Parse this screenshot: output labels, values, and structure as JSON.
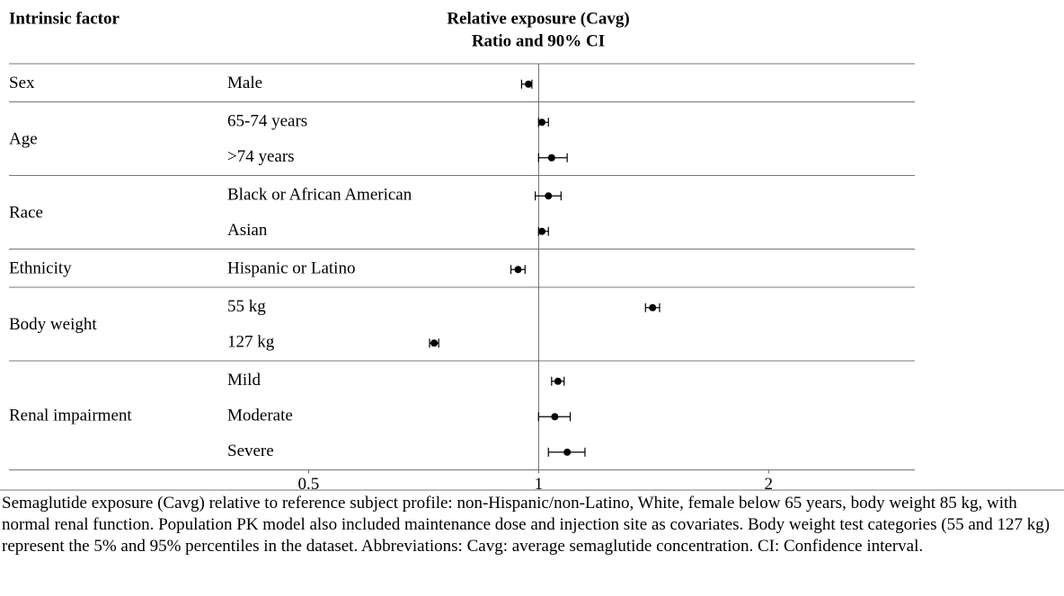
{
  "chart_data": {
    "type": "forest",
    "header": {
      "factor": "Intrinsic factor",
      "measure": "Relative exposure (Cavg)",
      "measure_sub": "Ratio and 90% CI"
    },
    "xscale": "log",
    "xlim": [
      0.4,
      3
    ],
    "xticks": [
      0.5,
      1,
      2
    ],
    "reference_line": 1,
    "color": "#000000",
    "groups": [
      {
        "name": "Sex",
        "items": [
          {
            "label": "Male",
            "value": 0.97,
            "ci": [
              0.95,
              0.98
            ]
          }
        ]
      },
      {
        "name": "Age",
        "items": [
          {
            "label": "65-74 years",
            "value": 1.01,
            "ci": [
              1.0,
              1.03
            ]
          },
          {
            "label": ">74 years",
            "value": 1.04,
            "ci": [
              1.0,
              1.09
            ]
          }
        ]
      },
      {
        "name": "Race",
        "items": [
          {
            "label": "Black or African American",
            "value": 1.03,
            "ci": [
              0.99,
              1.07
            ]
          },
          {
            "label": "Asian",
            "value": 1.01,
            "ci": [
              1.0,
              1.03
            ]
          }
        ]
      },
      {
        "name": "Ethnicity",
        "items": [
          {
            "label": "Hispanic or Latino",
            "value": 0.94,
            "ci": [
              0.92,
              0.96
            ]
          }
        ]
      },
      {
        "name": "Body weight",
        "items": [
          {
            "label": "55 kg",
            "value": 1.41,
            "ci": [
              1.38,
              1.44
            ]
          },
          {
            "label": "127 kg",
            "value": 0.73,
            "ci": [
              0.72,
              0.74
            ]
          }
        ]
      },
      {
        "name": "Renal impairment",
        "items": [
          {
            "label": "Mild",
            "value": 1.06,
            "ci": [
              1.04,
              1.08
            ]
          },
          {
            "label": "Moderate",
            "value": 1.05,
            "ci": [
              1.0,
              1.1
            ]
          },
          {
            "label": "Severe",
            "value": 1.09,
            "ci": [
              1.03,
              1.15
            ]
          }
        ]
      }
    ],
    "footnote": "Semaglutide exposure (Cavg) relative to reference subject profile: non-Hispanic/non-Latino, White, female below 65 years, body weight 85 kg, with normal renal function. Population PK model also included maintenance dose and injection site as covariates. Body weight test categories (55 and 127 kg) represent the 5% and 95% percentiles in the dataset. Abbreviations: Cavg: average semaglutide concentration. CI: Confidence interval."
  }
}
